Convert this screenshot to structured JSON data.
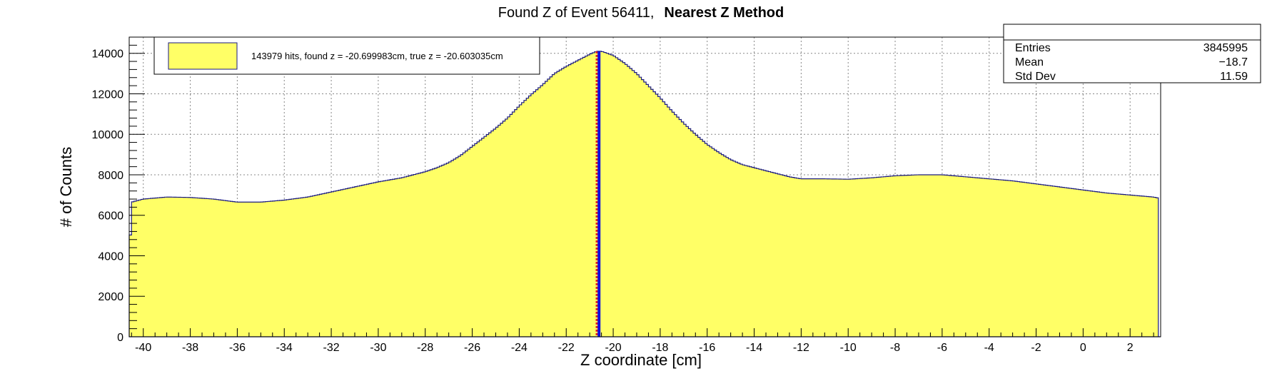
{
  "chart_data": {
    "type": "area",
    "title_prefix": "Found Z of Event 56411,",
    "title_method": "Nearest Z Method",
    "xlabel": "Z coordinate [cm]",
    "ylabel": "# of Counts",
    "xlim": [
      -40.6,
      3.3
    ],
    "ylim": [
      0,
      14800
    ],
    "x_ticks": [
      -40,
      -38,
      -36,
      -34,
      -32,
      -30,
      -28,
      -26,
      -24,
      -22,
      -20,
      -18,
      -16,
      -14,
      -12,
      -10,
      -8,
      -6,
      -4,
      -2,
      0,
      2
    ],
    "y_ticks": [
      0,
      2000,
      4000,
      6000,
      8000,
      10000,
      12000,
      14000
    ],
    "grid": true,
    "legend": {
      "position": "top-left",
      "entry": "143979 hits, found z = -20.699983cm, true z = -20.603035cm"
    },
    "stats_box": {
      "position": "top-right",
      "rows": [
        {
          "label": "Entries",
          "value": "3845995"
        },
        {
          "label": "Mean",
          "value": "−18.7"
        },
        {
          "label": "Std Dev",
          "value": "11.59"
        }
      ]
    },
    "found_z": -20.699983,
    "true_z": -20.603035,
    "series": [
      {
        "fill_color": "#ffff66",
        "line_color": "#1a1a80",
        "x": [
          -40.6,
          -40.5,
          -40,
          -39,
          -38,
          -37,
          -36,
          -35,
          -34,
          -33,
          -32,
          -31,
          -30,
          -29,
          -28,
          -27.5,
          -27,
          -26.5,
          -26,
          -25.5,
          -25,
          -24.5,
          -24,
          -23.5,
          -23,
          -22.5,
          -22,
          -21.5,
          -21,
          -20.7,
          -20.5,
          -20,
          -19.5,
          -19,
          -18.5,
          -18,
          -17.5,
          -17,
          -16.5,
          -16,
          -15.5,
          -15,
          -14.5,
          -14,
          -13.5,
          -13,
          -12.5,
          -12,
          -11,
          -10,
          -9,
          -8,
          -7,
          -6,
          -5,
          -4,
          -3,
          -2,
          -1,
          0,
          1,
          2,
          3,
          3.2,
          3.25
        ],
        "y": [
          3400,
          6650,
          6800,
          6900,
          6880,
          6800,
          6650,
          6650,
          6750,
          6900,
          7150,
          7400,
          7650,
          7850,
          8150,
          8350,
          8600,
          8950,
          9400,
          9850,
          10300,
          10800,
          11400,
          11950,
          12450,
          13000,
          13350,
          13650,
          13950,
          14100,
          14100,
          13900,
          13500,
          13000,
          12400,
          11800,
          11150,
          10550,
          10000,
          9500,
          9100,
          8750,
          8500,
          8350,
          8200,
          8050,
          7900,
          7800,
          7800,
          7780,
          7850,
          7950,
          8000,
          8000,
          7900,
          7800,
          7700,
          7550,
          7400,
          7250,
          7100,
          7000,
          6900,
          6850,
          3400
        ]
      }
    ]
  }
}
